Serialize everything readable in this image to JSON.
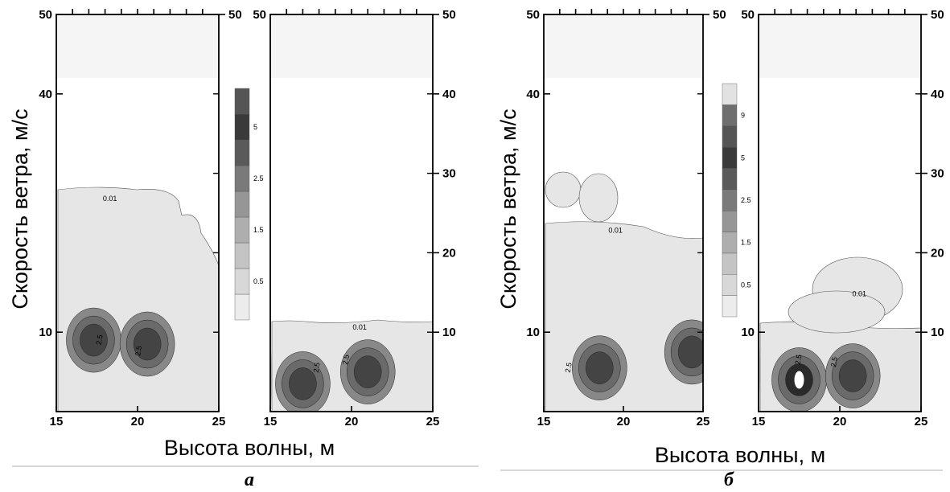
{
  "figure": {
    "panel_letters": [
      "а",
      "б"
    ],
    "xlabel": "Высота волны, м",
    "ylabel": "Скорость ветра, м/с"
  },
  "chart_data": [
    {
      "type": "heatmap",
      "id": "a-left",
      "group": "а",
      "xlim": [
        15,
        25
      ],
      "ylim": [
        0,
        50
      ],
      "xticks": [
        15,
        20,
        25
      ],
      "yticks_left": [
        10,
        40,
        50
      ],
      "yticks_right": [
        50
      ],
      "colorbar": {
        "labels": [
          "0.5",
          "1.5",
          "2.5",
          "5"
        ]
      },
      "contour_labels": [
        {
          "text": "0.01",
          "x": 18.3,
          "y": 26.5
        },
        {
          "text": "2.5",
          "x": 17.8,
          "y": 9.0
        },
        {
          "text": "2.5",
          "x": 20.2,
          "y": 7.6
        }
      ],
      "blobs": [
        {
          "x": 17.3,
          "y": 9.0,
          "level": 5
        },
        {
          "x": 20.6,
          "y": 8.5,
          "level": 5
        }
      ]
    },
    {
      "type": "heatmap",
      "id": "a-right",
      "group": "а",
      "xlim": [
        15,
        25
      ],
      "ylim": [
        0,
        50
      ],
      "xticks": [
        15,
        20,
        25
      ],
      "yticks_left": [
        50
      ],
      "yticks_right": [
        10,
        20,
        30,
        40,
        50
      ],
      "contour_labels": [
        {
          "text": "0.01",
          "x": 20.5,
          "y": 10.3
        },
        {
          "text": "2.5",
          "x": 18.0,
          "y": 5.5
        },
        {
          "text": "2.5",
          "x": 19.8,
          "y": 6.5
        }
      ],
      "blobs": [
        {
          "x": 17.0,
          "y": 3.5,
          "level": 5
        },
        {
          "x": 21.0,
          "y": 5.0,
          "level": 5
        }
      ]
    },
    {
      "type": "heatmap",
      "id": "b-left",
      "group": "б",
      "xlim": [
        15,
        25
      ],
      "ylim": [
        0,
        50
      ],
      "xticks": [
        15,
        20,
        25
      ],
      "yticks_left": [
        10,
        40,
        50
      ],
      "yticks_right": [
        50
      ],
      "colorbar": {
        "labels": [
          "0.5",
          "1.5",
          "2.5",
          "5",
          "9"
        ]
      },
      "contour_labels": [
        {
          "text": "0.01",
          "x": 19.5,
          "y": 22.5
        },
        {
          "text": "2.5",
          "x": 16.7,
          "y": 5.5
        }
      ],
      "blobs": [
        {
          "x": 18.5,
          "y": 5.5,
          "level": 5
        },
        {
          "x": 24.3,
          "y": 7.5,
          "level": 5
        }
      ]
    },
    {
      "type": "heatmap",
      "id": "b-right",
      "group": "б",
      "xlim": [
        15,
        25
      ],
      "ylim": [
        0,
        50
      ],
      "xticks": [
        15,
        20,
        25
      ],
      "yticks_left": [
        10,
        50
      ],
      "yticks_right": [
        10,
        20,
        30,
        40,
        50
      ],
      "contour_labels": [
        {
          "text": "0.01",
          "x": 21.2,
          "y": 14.5
        },
        {
          "text": "2.5",
          "x": 17.6,
          "y": 6.5
        },
        {
          "text": "2.5",
          "x": 19.8,
          "y": 6.2
        }
      ],
      "blobs": [
        {
          "x": 17.5,
          "y": 4.0,
          "level": 9
        },
        {
          "x": 20.8,
          "y": 4.5,
          "level": 5
        }
      ]
    }
  ]
}
